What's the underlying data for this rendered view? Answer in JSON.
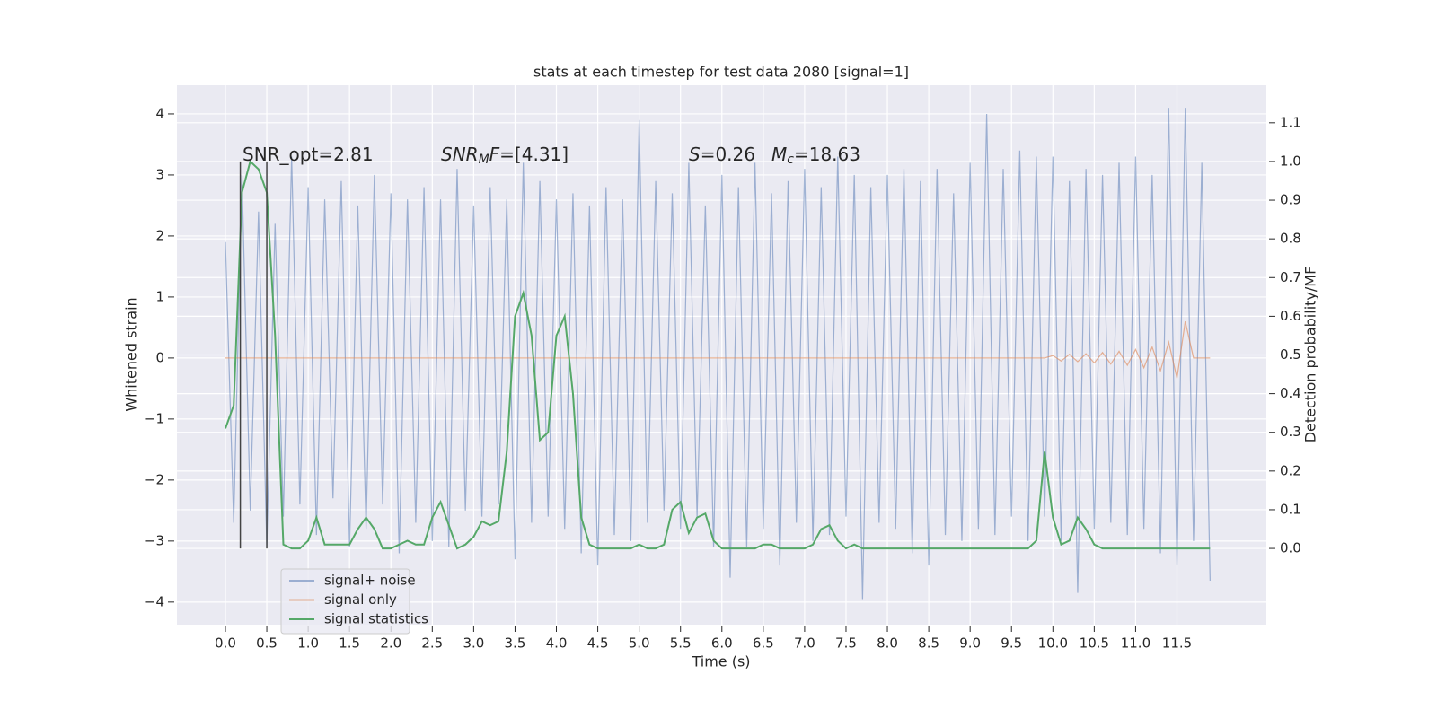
{
  "chart_data": {
    "type": "line",
    "title": "stats at each timestep for test data 2080 [signal=1]",
    "xlabel": "Time (s)",
    "ylabel": "Whitened strain",
    "y2label": "Detection probability/MF",
    "x": [
      0.0,
      0.1,
      0.2,
      0.3,
      0.4,
      0.5,
      0.6,
      0.7,
      0.8,
      0.9,
      1.0,
      1.1,
      1.2,
      1.3,
      1.4,
      1.5,
      1.6,
      1.7,
      1.8,
      1.9,
      2.0,
      2.1,
      2.2,
      2.3,
      2.4,
      2.5,
      2.6,
      2.7,
      2.8,
      2.9,
      3.0,
      3.1,
      3.2,
      3.3,
      3.4,
      3.5,
      3.6,
      3.7,
      3.8,
      3.9,
      4.0,
      4.1,
      4.2,
      4.3,
      4.4,
      4.5,
      4.6,
      4.7,
      4.8,
      4.9,
      5.0,
      5.1,
      5.2,
      5.3,
      5.4,
      5.5,
      5.6,
      5.7,
      5.8,
      5.9,
      6.0,
      6.1,
      6.2,
      6.3,
      6.4,
      6.5,
      6.6,
      6.7,
      6.8,
      6.9,
      7.0,
      7.1,
      7.2,
      7.3,
      7.4,
      7.5,
      7.6,
      7.7,
      7.8,
      7.9,
      8.0,
      8.1,
      8.2,
      8.3,
      8.4,
      8.5,
      8.6,
      8.7,
      8.8,
      8.9,
      9.0,
      9.1,
      9.2,
      9.3,
      9.4,
      9.5,
      9.6,
      9.7,
      9.8,
      9.9,
      10.0,
      10.1,
      10.2,
      10.3,
      10.4,
      10.5,
      10.6,
      10.7,
      10.8,
      10.9,
      11.0,
      11.1,
      11.2,
      11.3,
      11.4,
      11.5,
      11.6,
      11.7,
      11.8,
      11.9
    ],
    "series": [
      {
        "name": "signal+ noise",
        "color": "#4c72b0",
        "opacity": 0.5,
        "values": [
          1.9,
          -2.7,
          3.0,
          -2.5,
          2.4,
          -3.1,
          2.2,
          -2.6,
          3.3,
          -2.4,
          2.8,
          -2.9,
          2.6,
          -2.3,
          2.9,
          -3.1,
          2.5,
          -2.8,
          3.0,
          -2.4,
          2.7,
          -3.2,
          2.6,
          -2.7,
          2.8,
          -3.0,
          2.6,
          -3.1,
          3.1,
          -2.5,
          2.5,
          -2.6,
          2.8,
          -2.4,
          2.6,
          -3.3,
          3.2,
          -2.7,
          2.9,
          -2.6,
          2.6,
          -2.8,
          2.7,
          -3.2,
          2.5,
          -3.4,
          2.8,
          -2.9,
          2.6,
          -3.0,
          3.9,
          -2.7,
          2.9,
          -2.5,
          2.7,
          -2.8,
          3.2,
          -2.6,
          2.5,
          -3.1,
          3.0,
          -3.6,
          2.8,
          -3.1,
          3.2,
          -2.8,
          2.7,
          -3.4,
          2.9,
          -2.7,
          3.1,
          -3.0,
          2.8,
          -2.9,
          3.3,
          -2.6,
          3.0,
          -3.95,
          2.8,
          -2.7,
          3.0,
          -2.8,
          3.1,
          -3.2,
          2.9,
          -3.4,
          3.1,
          -2.9,
          2.7,
          -3.0,
          3.2,
          -2.8,
          4.0,
          -2.9,
          3.1,
          -2.6,
          3.4,
          -3.0,
          3.3,
          -2.6,
          3.3,
          -3.0,
          2.9,
          -3.85,
          3.1,
          -2.8,
          3.0,
          -2.7,
          3.2,
          -2.9,
          3.3,
          -2.8,
          3.0,
          -3.2,
          4.1,
          -3.4,
          4.1,
          -3.0,
          3.2,
          -3.65
        ]
      },
      {
        "name": "signal only",
        "color": "#dd8452",
        "opacity": 0.6,
        "values": [
          0,
          0,
          0,
          0,
          0,
          0,
          0,
          0,
          0,
          0,
          0,
          0,
          0,
          0,
          0,
          0,
          0,
          0,
          0,
          0,
          0,
          0,
          0,
          0,
          0,
          0,
          0,
          0,
          0,
          0,
          0,
          0,
          0,
          0,
          0,
          0,
          0,
          0,
          0,
          0,
          0,
          0,
          0,
          0,
          0,
          0,
          0,
          0,
          0,
          0,
          0,
          0,
          0,
          0,
          0,
          0,
          0,
          0,
          0,
          0,
          0,
          0,
          0,
          0,
          0,
          0,
          0,
          0,
          0,
          0,
          0,
          0,
          0,
          0,
          0,
          0,
          0,
          0,
          0,
          0,
          0,
          0,
          0,
          0,
          0,
          0,
          0,
          0,
          0,
          0,
          0,
          0,
          0,
          0,
          0,
          0,
          0,
          0,
          0,
          0,
          0.04,
          -0.05,
          0.06,
          -0.06,
          0.07,
          -0.08,
          0.09,
          -0.1,
          0.11,
          -0.12,
          0.14,
          -0.16,
          0.18,
          -0.21,
          0.26,
          -0.33,
          0.6,
          0,
          0,
          0
        ]
      },
      {
        "name": "signal statistics",
        "color": "#55a868",
        "opacity": 1,
        "axis": "y2",
        "values": [
          0.31,
          0.37,
          0.92,
          1.0,
          0.98,
          0.92,
          0.55,
          0.01,
          0.0,
          0.0,
          0.02,
          0.08,
          0.01,
          0.01,
          0.01,
          0.01,
          0.05,
          0.08,
          0.05,
          0.0,
          0.0,
          0.01,
          0.02,
          0.01,
          0.01,
          0.08,
          0.12,
          0.06,
          0.0,
          0.01,
          0.03,
          0.07,
          0.06,
          0.07,
          0.25,
          0.6,
          0.66,
          0.55,
          0.28,
          0.3,
          0.55,
          0.6,
          0.4,
          0.08,
          0.01,
          0.0,
          0.0,
          0.0,
          0.0,
          0.0,
          0.01,
          0.0,
          0.0,
          0.01,
          0.1,
          0.12,
          0.04,
          0.08,
          0.09,
          0.02,
          0,
          0,
          0,
          0,
          0,
          0.01,
          0.01,
          0,
          0,
          0,
          0,
          0.01,
          0.05,
          0.06,
          0.02,
          0,
          0.01,
          0,
          0,
          0,
          0,
          0,
          0,
          0,
          0,
          0,
          0,
          0,
          0,
          0,
          0,
          0,
          0,
          0,
          0,
          0,
          0,
          0,
          0.02,
          0.25,
          0.08,
          0.01,
          0.02,
          0.08,
          0.05,
          0.01,
          0,
          0,
          0,
          0,
          0,
          0,
          0,
          0,
          0,
          0,
          0,
          0,
          0,
          0
        ]
      }
    ],
    "xlim": [
      -0.586,
      12.58
    ],
    "ylim": [
      -4.37,
      4.47
    ],
    "y2lim": [
      -0.197,
      1.197
    ],
    "xticks": [
      {
        "value": 0,
        "label": "0.0"
      },
      {
        "value": 0.5,
        "label": "0.5"
      },
      {
        "value": 1,
        "label": "1.0"
      },
      {
        "value": 1.5,
        "label": "1.5"
      },
      {
        "value": 2,
        "label": "2.0"
      },
      {
        "value": 2.5,
        "label": "2.5"
      },
      {
        "value": 3,
        "label": "3.0"
      },
      {
        "value": 3.5,
        "label": "3.5"
      },
      {
        "value": 4,
        "label": "4.0"
      },
      {
        "value": 4.5,
        "label": "4.5"
      },
      {
        "value": 5,
        "label": "5.0"
      },
      {
        "value": 5.5,
        "label": "5.5"
      },
      {
        "value": 6,
        "label": "6.0"
      },
      {
        "value": 6.5,
        "label": "6.5"
      },
      {
        "value": 7,
        "label": "7.0"
      },
      {
        "value": 7.5,
        "label": "7.5"
      },
      {
        "value": 8,
        "label": "8.0"
      },
      {
        "value": 8.5,
        "label": "8.5"
      },
      {
        "value": 9,
        "label": "9.0"
      },
      {
        "value": 9.5,
        "label": "9.5"
      },
      {
        "value": 10,
        "label": "10.0"
      },
      {
        "value": 10.5,
        "label": "10.5"
      },
      {
        "value": 11,
        "label": "11.0"
      },
      {
        "value": 11.5,
        "label": "11.5"
      }
    ],
    "yticks": [
      {
        "value": -4,
        "label": "−4"
      },
      {
        "value": -3,
        "label": "−3"
      },
      {
        "value": -2,
        "label": "−2"
      },
      {
        "value": -1,
        "label": "−1"
      },
      0,
      1,
      2,
      3,
      4
    ],
    "y2ticks": [
      {
        "value": 0,
        "label": "0.0"
      },
      {
        "value": 0.1,
        "label": "0.1"
      },
      {
        "value": 0.2,
        "label": "0.2"
      },
      {
        "value": 0.3,
        "label": "0.3"
      },
      {
        "value": 0.4,
        "label": "0.4"
      },
      {
        "value": 0.5,
        "label": "0.5"
      },
      {
        "value": 0.6,
        "label": "0.6"
      },
      {
        "value": 0.7,
        "label": "0.7"
      },
      {
        "value": 0.8,
        "label": "0.8"
      },
      {
        "value": 0.9,
        "label": "0.9"
      },
      {
        "value": 1,
        "label": "1.0"
      },
      {
        "value": 1.1,
        "label": "1.1"
      }
    ],
    "grid": true,
    "background": "#eaeaf2",
    "legend": "lower left",
    "vlines": {
      "x": [
        0.18,
        0.5
      ],
      "ymin": 0,
      "ymax": 1,
      "axis": "y2",
      "color": "#444444"
    },
    "annotations": [
      [
        {
          "text": "SNR_opt=2.81",
          "style": "normal"
        }
      ],
      [
        {
          "text": "SNR",
          "style": "italic"
        },
        {
          "text": "M",
          "style": "sub"
        },
        {
          "text": "F",
          "style": "italic"
        },
        {
          "text": "=[4.31]",
          "style": "normal"
        }
      ],
      [
        {
          "text": "S",
          "style": "italic"
        },
        {
          "text": "=0.26",
          "style": "normal"
        }
      ],
      [
        {
          "text": "M",
          "style": "italic"
        },
        {
          "text": "c",
          "style": "sub"
        },
        {
          "text": "=18.63",
          "style": "normal"
        }
      ]
    ]
  }
}
